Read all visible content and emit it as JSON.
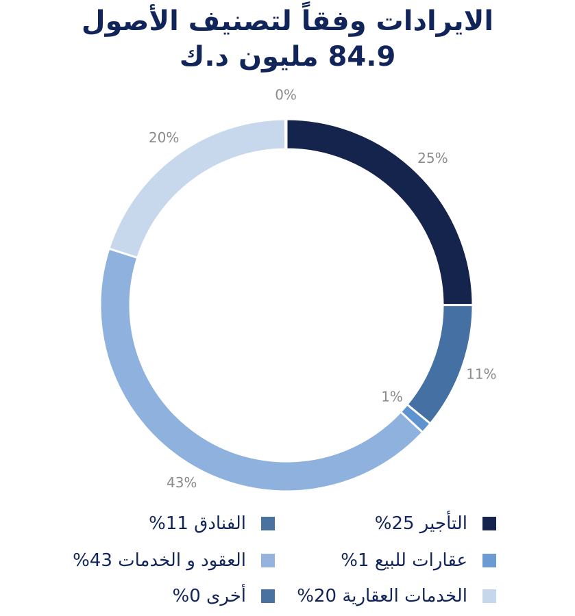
{
  "title": {
    "line1": "الايرادات وفقاً لتصنيف الأصول",
    "line2": "84.9 مليون د.ك"
  },
  "chart_data": {
    "type": "pie",
    "variant": "donut",
    "slices": [
      {
        "label": "التأجير",
        "value": 25,
        "display": "25%",
        "color": "#14244d"
      },
      {
        "label": "الفنادق",
        "value": 11,
        "display": "11%",
        "color": "#4470a3"
      },
      {
        "label": "عقارات للبيع",
        "value": 1,
        "display": "1%",
        "color": "#5d94d0"
      },
      {
        "label": "العقود و الخدمات",
        "value": 43,
        "display": "43%",
        "color": "#8eb1de"
      },
      {
        "label": "الخدمات العقارية",
        "value": 20,
        "display": "20%",
        "color": "#c7d7ec"
      },
      {
        "label": "أخرى",
        "value": 0,
        "display": "0%",
        "color": "#3d6494"
      }
    ],
    "data_label_color": "#8a8a8a"
  },
  "legend": [
    {
      "text": "التأجير 25%",
      "color": "#14244d"
    },
    {
      "text": "الفنادق 11%",
      "color": "#4a72a0"
    },
    {
      "text": "عقارات للبيع 1%",
      "color": "#6b9bd2"
    },
    {
      "text": "العقود و الخدمات 43%",
      "color": "#94b3de"
    },
    {
      "text": "الخدمات العقارية 20%",
      "color": "#c6d6eb"
    },
    {
      "text": "أخرى 0%",
      "color": "#4a72a0"
    }
  ]
}
